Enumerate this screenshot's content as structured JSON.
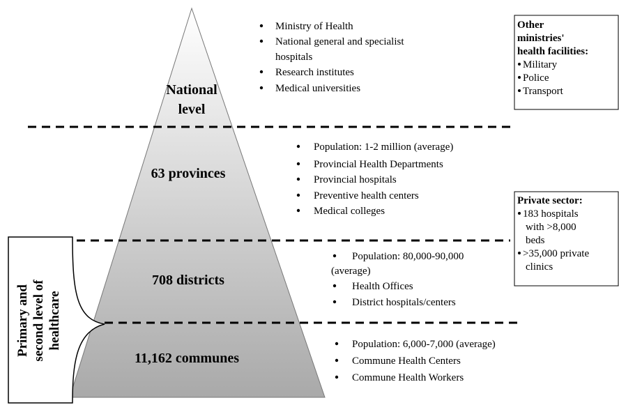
{
  "levels": [
    {
      "label": [
        "National",
        "level"
      ],
      "items": [
        [
          "Ministry of Health"
        ],
        [
          "National general and specialist",
          "hospitals"
        ],
        [
          "Research institutes"
        ],
        [
          "Medical universities"
        ]
      ]
    },
    {
      "label": [
        "63 provinces"
      ],
      "items": [
        [
          "Population: 1-2 million (average)"
        ],
        [
          "Provincial Health  Departments"
        ],
        [
          "Provincial hospitals"
        ],
        [
          "Preventive health centers"
        ],
        [
          "Medical colleges"
        ]
      ]
    },
    {
      "label": [
        "708 districts"
      ],
      "items": [
        [
          "Population: 80,000-90,000",
          "(average)"
        ],
        [
          "Health Offices"
        ],
        [
          "District  hospitals/centers"
        ]
      ]
    },
    {
      "label": [
        "11,162 communes"
      ],
      "items": [
        [
          "Population: 6,000-7,000 (average)"
        ],
        [
          "Commune Health Centers"
        ],
        [
          "Commune Health Workers"
        ]
      ]
    }
  ],
  "side_boxes": [
    {
      "title": [
        "Other",
        "ministries'",
        "health facilities:"
      ],
      "items": [
        [
          "Military"
        ],
        [
          "Police"
        ],
        [
          "Transport"
        ]
      ]
    },
    {
      "title": [
        "Private sector:"
      ],
      "items": [
        [
          "183 hospitals",
          "with >8,000",
          "beds"
        ],
        [
          ">35,000 private",
          "clinics"
        ]
      ]
    }
  ],
  "vertical_label": [
    "Primary and",
    "second level of",
    "healthcare"
  ]
}
